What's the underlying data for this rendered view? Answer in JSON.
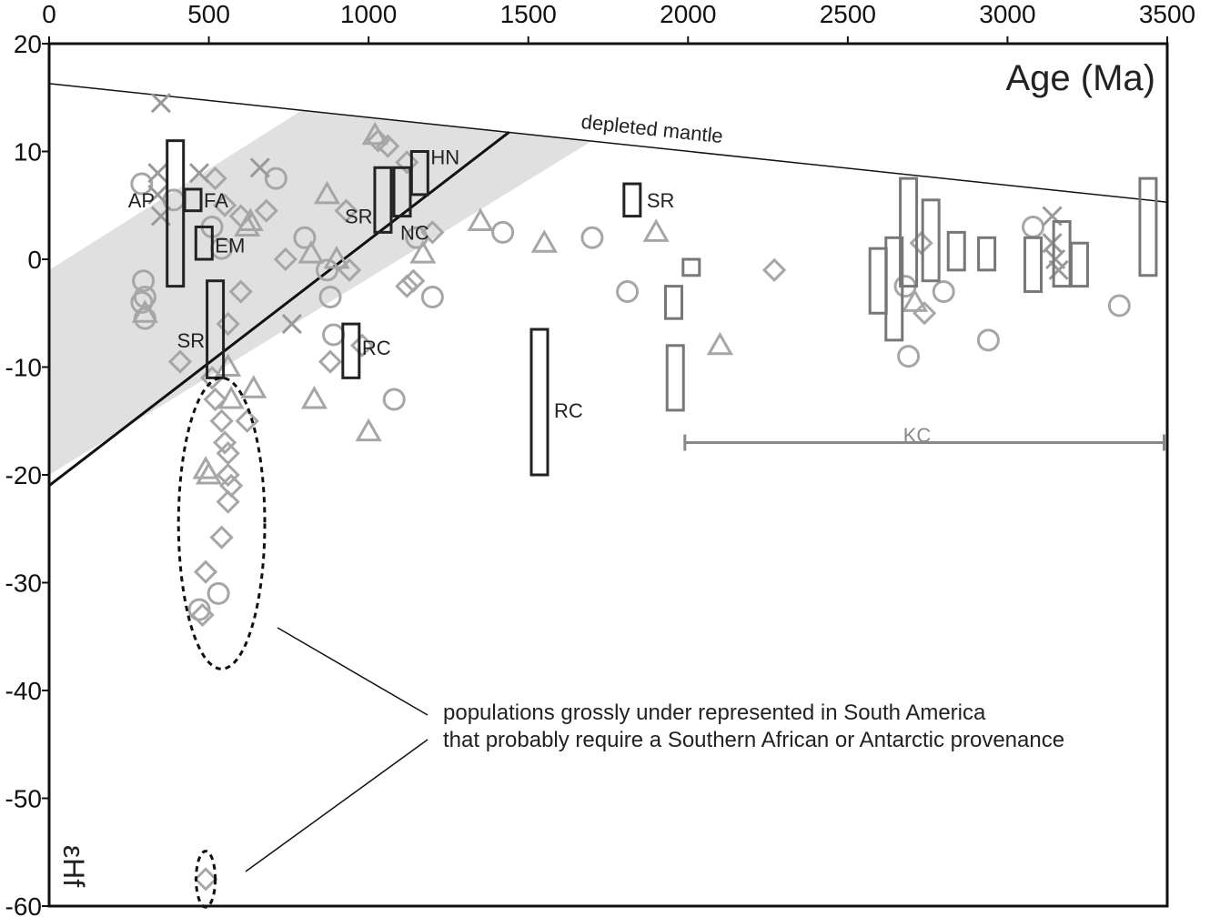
{
  "chart_data": {
    "type": "scatter",
    "xlabel": "Age (Ma)",
    "ylabel": "εHf",
    "xlim": [
      0,
      3500
    ],
    "ylim": [
      -60,
      20
    ],
    "x_ticks": [
      "0",
      "500",
      "1000",
      "1500",
      "2000",
      "2500",
      "3000",
      "3500"
    ],
    "y_ticks": [
      "20",
      "10",
      "0",
      "-10",
      "-20",
      "-30",
      "-40",
      "-50",
      "-60"
    ],
    "x_tick_values": [
      0,
      500,
      1000,
      1500,
      2000,
      2500,
      3000,
      3500
    ],
    "y_tick_values": [
      20,
      10,
      0,
      -10,
      -20,
      -30,
      -40,
      -50,
      -60
    ],
    "x_axis_position": "top",
    "grid": false,
    "depleted_mantle": {
      "label": "depleted mantle",
      "x": [
        0,
        3500
      ],
      "y": [
        16.3,
        5.3
      ]
    },
    "evolution_line": {
      "x": [
        0,
        1440
      ],
      "y": [
        -21,
        11.8
      ]
    },
    "shaded_band": {
      "polygon": [
        [
          0,
          -1
        ],
        [
          790,
          13.8
        ],
        [
          1700,
          11
        ],
        [
          0,
          -20
        ]
      ]
    },
    "colors": {
      "marker": "#a6a6a6",
      "dark_box": "#222222",
      "gray_box": "#777777",
      "band": "#e0e0e0",
      "line": "#111111"
    },
    "boxes": [
      {
        "label": "AP",
        "x": 395,
        "y_min": -2.5,
        "y_max": 11
      },
      {
        "label": "FA",
        "x": 450,
        "y_min": 4.5,
        "y_max": 6.5
      },
      {
        "label": "EM",
        "x": 485,
        "y_min": 0,
        "y_max": 3
      },
      {
        "label": "SR",
        "x": 520,
        "y_min": -11,
        "y_max": -2
      },
      {
        "label": "SR",
        "x": 1045,
        "y_min": 2.5,
        "y_max": 8.5
      },
      {
        "label": "NC",
        "x": 1105,
        "y_min": 4,
        "y_max": 8.5
      },
      {
        "label": "HN",
        "x": 1160,
        "y_min": 6,
        "y_max": 10
      },
      {
        "label": "RC",
        "x": 945,
        "y_min": -11,
        "y_max": -6
      },
      {
        "label": "RC",
        "x": 1535,
        "y_min": -20,
        "y_max": -6.5
      },
      {
        "label": "SR",
        "x": 1825,
        "y_min": 4,
        "y_max": 7
      },
      {
        "label": "",
        "x": 1955,
        "y_min": -5.5,
        "y_max": -2.5
      },
      {
        "label": "",
        "x": 2010,
        "y_min": -1.5,
        "y_max": 0
      },
      {
        "label": "",
        "x": 1960,
        "y_min": -14,
        "y_max": -8
      },
      {
        "label": "",
        "x": 2595,
        "y_min": -5,
        "y_max": 1
      },
      {
        "label": "",
        "x": 2645,
        "y_min": -7.5,
        "y_max": 2
      },
      {
        "label": "",
        "x": 2690,
        "y_min": -2.5,
        "y_max": 7.5
      },
      {
        "label": "",
        "x": 2760,
        "y_min": -2,
        "y_max": 5.5
      },
      {
        "label": "",
        "x": 2840,
        "y_min": -1,
        "y_max": 2.5
      },
      {
        "label": "",
        "x": 2935,
        "y_min": -1,
        "y_max": 2
      },
      {
        "label": "",
        "x": 3080,
        "y_min": -3,
        "y_max": 2
      },
      {
        "label": "",
        "x": 3170,
        "y_min": -2.5,
        "y_max": 3.5
      },
      {
        "label": "",
        "x": 3225,
        "y_min": -2.5,
        "y_max": 1.5
      },
      {
        "label": "",
        "x": 3440,
        "y_min": -1.5,
        "y_max": 7.5
      }
    ],
    "bracket": {
      "label": "KC",
      "x_min": 1990,
      "x_max": 3490,
      "y": -17
    },
    "circles": [
      [
        290,
        7
      ],
      [
        295,
        -2
      ],
      [
        300,
        -3.5
      ],
      [
        290,
        -4
      ],
      [
        300,
        -5.5
      ],
      [
        390,
        5.5
      ],
      [
        510,
        3
      ],
      [
        540,
        1
      ],
      [
        710,
        7.5
      ],
      [
        800,
        2
      ],
      [
        870,
        -1
      ],
      [
        880,
        -3.5
      ],
      [
        890,
        -7
      ],
      [
        1080,
        -13
      ],
      [
        1150,
        2
      ],
      [
        1200,
        -3.5
      ],
      [
        1420,
        2.5
      ],
      [
        1700,
        2
      ],
      [
        1810,
        -3
      ],
      [
        2680,
        -2.5
      ],
      [
        2690,
        -9
      ],
      [
        2800,
        -3
      ],
      [
        2940,
        -7.5
      ],
      [
        3080,
        3
      ],
      [
        3350,
        -4.3
      ],
      [
        530,
        -31
      ],
      [
        470,
        -32.5
      ]
    ],
    "triangles": [
      [
        300,
        -5
      ],
      [
        620,
        3
      ],
      [
        630,
        3.5
      ],
      [
        820,
        0.5
      ],
      [
        870,
        6
      ],
      [
        900,
        0
      ],
      [
        1020,
        11.5
      ],
      [
        1170,
        0.5
      ],
      [
        1350,
        3.5
      ],
      [
        1550,
        1.5
      ],
      [
        1900,
        2.5
      ],
      [
        2100,
        -8
      ],
      [
        830,
        -13
      ],
      [
        1000,
        -16
      ],
      [
        640,
        -12
      ],
      [
        490,
        -19.5
      ],
      [
        500,
        -20
      ],
      [
        560,
        -10
      ],
      [
        570,
        -13
      ],
      [
        2710,
        -4
      ]
    ],
    "diamonds": [
      [
        410,
        -9.5
      ],
      [
        520,
        7.5
      ],
      [
        550,
        5
      ],
      [
        600,
        4
      ],
      [
        680,
        4.5
      ],
      [
        740,
        0
      ],
      [
        930,
        4.5
      ],
      [
        940,
        -1
      ],
      [
        1030,
        11
      ],
      [
        1060,
        10.5
      ],
      [
        1120,
        9
      ],
      [
        1120,
        -2.5
      ],
      [
        1140,
        -2
      ],
      [
        1200,
        2.5
      ],
      [
        880,
        -9.5
      ],
      [
        980,
        -8
      ],
      [
        510,
        -11
      ],
      [
        520,
        -13
      ],
      [
        540,
        -15
      ],
      [
        550,
        -17
      ],
      [
        560,
        -18
      ],
      [
        570,
        -21
      ],
      [
        560,
        -22.5
      ],
      [
        540,
        -25.8
      ],
      [
        490,
        -29
      ],
      [
        480,
        -33
      ],
      [
        560,
        -20
      ],
      [
        620,
        -15
      ],
      [
        2270,
        -1
      ],
      [
        2730,
        1.5
      ],
      [
        2740,
        -5
      ],
      [
        490,
        -57.5
      ],
      [
        560,
        -6
      ],
      [
        600,
        -3
      ]
    ],
    "crosses": [
      [
        350,
        14.5
      ],
      [
        340,
        8
      ],
      [
        340,
        6
      ],
      [
        350,
        4
      ],
      [
        470,
        8
      ],
      [
        660,
        8.5
      ],
      [
        760,
        -6
      ],
      [
        3140,
        4
      ],
      [
        3140,
        1.5
      ],
      [
        3150,
        0
      ],
      [
        3160,
        -1
      ]
    ],
    "annotations": [
      {
        "text": "populations grossly under represented in South America"
      },
      {
        "text": "that probably require a Southern African or Antarctic provenance"
      }
    ],
    "highlight_ellipses": [
      {
        "cx": 540,
        "cy": -24.5,
        "rx": 135,
        "ry": 13.5
      },
      {
        "cx": 490,
        "cy": -57.5,
        "rx": 30,
        "ry": 2.6
      }
    ]
  }
}
